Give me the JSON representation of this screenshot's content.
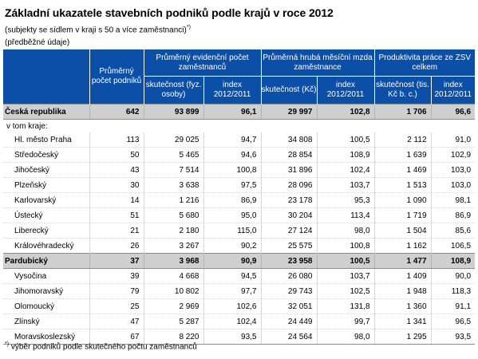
{
  "title": "Základní ukazatele stavebních podniků podle krajů v roce 2012",
  "subtitle": "(subjekty se sídlem v kraji s 50 a více zaměstnanci)",
  "subtitle_mark": "*)",
  "note": "(předběžné údaje)",
  "header": {
    "col1": "Průměrný počet podniků",
    "group1": "Průměrný evidenční počet zaměstnanců",
    "group2": "Průměrná hrubá měsíční mzda zaměstnance",
    "group3": "Produktivita práce ze ZSV celkem",
    "g1a": "skutečnost (fyz. osoby)",
    "g1b": "index 2012/2011",
    "g2a": "skutečnost (Kč)",
    "g2b": "index 2012/2011",
    "g3a": "skutečnost (tis. Kč b. c.)",
    "g3b": "index 2012/2011"
  },
  "country_row": {
    "name": "Česká republika",
    "values": [
      "642",
      "93 899",
      "96,1",
      "29 997",
      "102,8",
      "1 706",
      "96,6"
    ]
  },
  "region_label": "v tom kraje:",
  "regions": [
    {
      "name": "Hl. město Praha",
      "values": [
        "113",
        "29 025",
        "94,7",
        "34 808",
        "100,5",
        "2 112",
        "91,0"
      ]
    },
    {
      "name": "Středočeský",
      "values": [
        "50",
        "5 465",
        "94,6",
        "28 854",
        "108,9",
        "1 639",
        "102,9"
      ]
    },
    {
      "name": "Jihočeský",
      "values": [
        "43",
        "7 514",
        "100,8",
        "31 896",
        "102,4",
        "1 469",
        "103,0"
      ]
    },
    {
      "name": "Plzeňský",
      "values": [
        "30",
        "3 638",
        "97,5",
        "28 096",
        "103,7",
        "1 513",
        "103,0"
      ]
    },
    {
      "name": "Karlovarský",
      "values": [
        "14",
        "1 216",
        "86,9",
        "23 178",
        "95,3",
        "1 090",
        "98,1"
      ]
    },
    {
      "name": "Ústecký",
      "values": [
        "51",
        "5 680",
        "95,0",
        "30 204",
        "113,4",
        "1 719",
        "86,9"
      ]
    },
    {
      "name": "Liberecký",
      "values": [
        "21",
        "2 180",
        "115,0",
        "27 124",
        "98,0",
        "1 504",
        "85,6"
      ]
    },
    {
      "name": "Královéhradecký",
      "values": [
        "26",
        "3 267",
        "90,2",
        "25 575",
        "100,8",
        "1 162",
        "106,5"
      ]
    },
    {
      "name": "Pardubický",
      "values": [
        "37",
        "3 968",
        "90,9",
        "23 958",
        "100,5",
        "1 477",
        "108,9"
      ],
      "highlight": true
    },
    {
      "name": "Vysočina",
      "values": [
        "39",
        "4 668",
        "94,5",
        "26 080",
        "103,7",
        "1 409",
        "90,0"
      ]
    },
    {
      "name": "Jihomoravský",
      "values": [
        "79",
        "10 802",
        "97,7",
        "29 743",
        "102,5",
        "1 948",
        "118,3"
      ]
    },
    {
      "name": "Olomoucký",
      "values": [
        "25",
        "2 969",
        "102,6",
        "32 051",
        "131,8",
        "1 360",
        "91,1"
      ]
    },
    {
      "name": "Zlínský",
      "values": [
        "47",
        "5 287",
        "102,4",
        "24 449",
        "99,7",
        "1 341",
        "96,5"
      ]
    },
    {
      "name": "Moravskoslezský",
      "values": [
        "67",
        "8 220",
        "93,5",
        "24 564",
        "98,0",
        "1 295",
        "93,5"
      ]
    }
  ],
  "footnote_mark": "*)",
  "footnote": "výběr podniků podle skutečného počtu zaměstnanců"
}
